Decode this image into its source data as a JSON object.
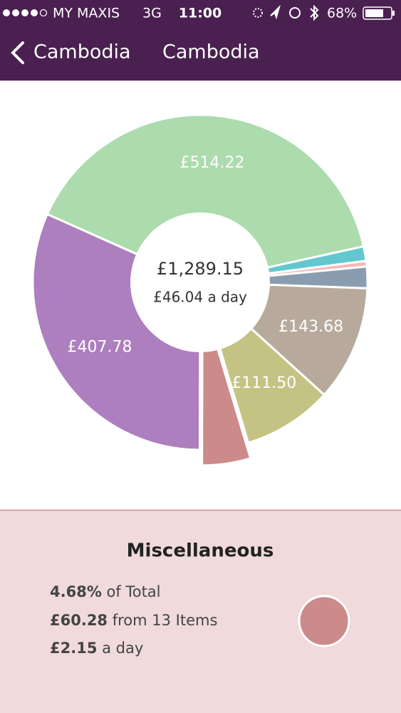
{
  "status_bar": {
    "carrier": "MY MAXIS",
    "network": "3G",
    "time": "11:00",
    "battery": "68%"
  },
  "nav": {
    "back": "Cambodia",
    "title": "Cambodia"
  },
  "chart_data": {
    "type": "donut",
    "center_total": "£1,289.15",
    "center_daily": "£46.04 a day",
    "values": [
      514.22,
      18,
      7,
      26.69,
      143.68,
      111.5,
      60.28,
      407.78
    ],
    "value_labels": [
      "£514.22",
      null,
      null,
      null,
      "£143.68",
      "£111.50",
      null,
      "£407.78"
    ],
    "colors": [
      "#acdbae",
      "#63c7cf",
      "#f5b8b5",
      "#8a9db0",
      "#b7aa9c",
      "#c5c384",
      "#cd8a8a",
      "#ad7fbe"
    ],
    "exploded": 6
  },
  "detail": {
    "title": "Miscellaneous",
    "percent": "4.68%",
    "percent_text": "of Total",
    "amount": "£60.28",
    "amount_text": "from 13 Items",
    "daily": "£2.15",
    "daily_text": "a day",
    "color": "#cd8a8a"
  }
}
